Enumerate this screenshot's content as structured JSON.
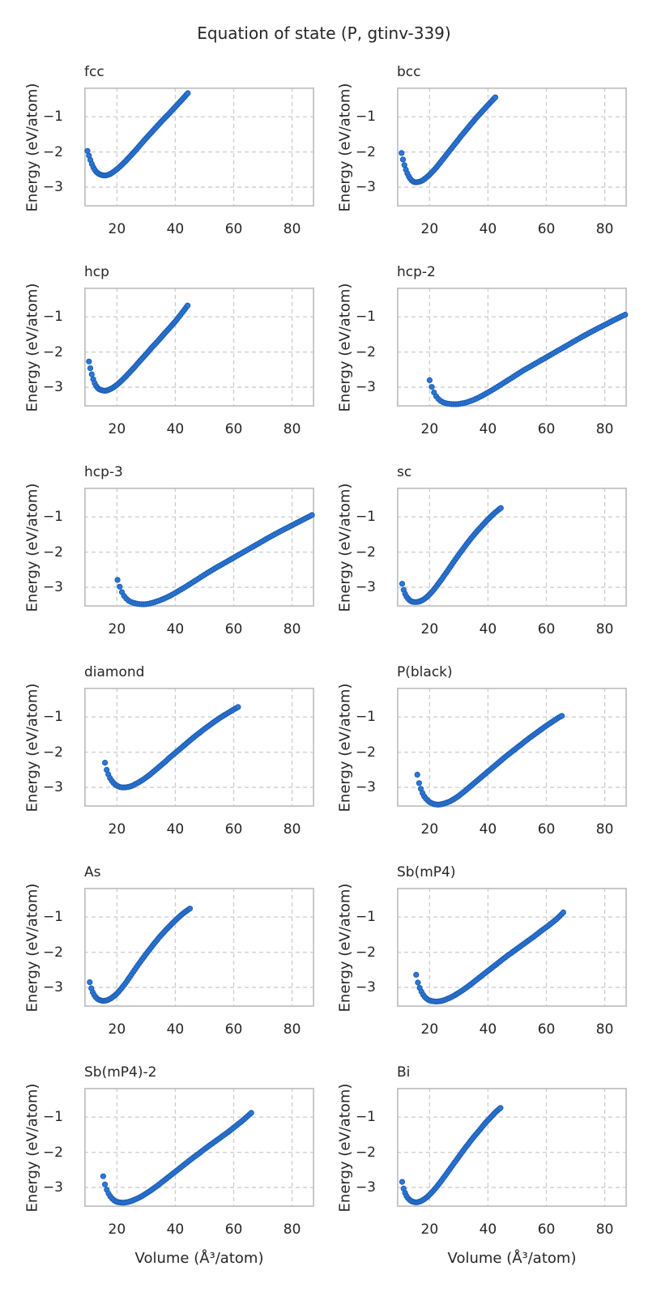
{
  "chart_data": {
    "type": "scatter",
    "title": "Equation of state (P, gtinv-339)",
    "xlabel": "Volume (Å³/atom)",
    "ylabel": "Energy (eV/atom)",
    "xlim": [
      8.8,
      87.6
    ],
    "ylim": [
      -3.55,
      -0.17
    ],
    "xticks": [
      20,
      40,
      60,
      80
    ],
    "yticks": [
      -1,
      -2,
      -3
    ],
    "ytick_labels": [
      "−1",
      "−2",
      "−3"
    ],
    "grid": true,
    "grid_style": "dashed",
    "subplot_grid": {
      "rows": 6,
      "cols": 2
    },
    "marker": {
      "color": "#2b78d9",
      "edge": "#1d5cb0"
    },
    "series": [
      {
        "name": "fcc",
        "n_points": 70,
        "x": [
          9.9,
          10.5,
          11.2,
          12.0,
          13.0,
          14.0,
          15.0,
          16.0,
          17.0,
          18.0,
          20.0,
          22.0,
          24.0,
          26.0,
          28.0,
          30.0,
          32.0,
          34.0,
          36.0,
          38.0,
          40.0,
          42.0,
          44.3
        ],
        "y": [
          -1.97,
          -2.13,
          -2.3,
          -2.45,
          -2.57,
          -2.63,
          -2.66,
          -2.67,
          -2.65,
          -2.61,
          -2.49,
          -2.34,
          -2.17,
          -1.99,
          -1.8,
          -1.61,
          -1.43,
          -1.25,
          -1.07,
          -0.9,
          -0.72,
          -0.54,
          -0.33
        ]
      },
      {
        "name": "bcc",
        "n_points": 66,
        "x": [
          10.4,
          11.0,
          11.7,
          12.5,
          13.3,
          14.2,
          15.2,
          16.3,
          17.5,
          19.0,
          21.0,
          23.0,
          25.0,
          27.0,
          29.0,
          31.0,
          33.0,
          35.0,
          37.0,
          39.0,
          41.0,
          42.5
        ],
        "y": [
          -2.03,
          -2.25,
          -2.46,
          -2.63,
          -2.75,
          -2.83,
          -2.86,
          -2.85,
          -2.81,
          -2.72,
          -2.56,
          -2.37,
          -2.16,
          -1.95,
          -1.74,
          -1.53,
          -1.33,
          -1.13,
          -0.94,
          -0.76,
          -0.58,
          -0.45
        ]
      },
      {
        "name": "hcp",
        "n_points": 70,
        "x": [
          10.4,
          11.0,
          11.6,
          12.3,
          13.1,
          14.0,
          15.0,
          16.0,
          17.0,
          18.5,
          20.0,
          22.0,
          24.0,
          26.0,
          28.0,
          30.0,
          32.0,
          34.0,
          36.0,
          38.0,
          40.0,
          42.0,
          44.2
        ],
        "y": [
          -2.27,
          -2.5,
          -2.7,
          -2.87,
          -2.99,
          -3.06,
          -3.09,
          -3.1,
          -3.08,
          -3.02,
          -2.93,
          -2.78,
          -2.61,
          -2.43,
          -2.24,
          -2.06,
          -1.87,
          -1.69,
          -1.5,
          -1.32,
          -1.13,
          -0.92,
          -0.68
        ]
      },
      {
        "name": "hcp-2",
        "n_points": 90,
        "x": [
          20.0,
          20.7,
          21.4,
          22.2,
          23.0,
          24.0,
          25.0,
          26.5,
          28.0,
          29.5,
          31.0,
          33.0,
          35.0,
          38.0,
          41.0,
          44.0,
          48.0,
          52.0,
          56.0,
          60.0,
          64.0,
          68.0,
          72.0,
          76.0,
          80.0,
          83.5,
          87.0
        ],
        "y": [
          -2.8,
          -2.98,
          -3.13,
          -3.25,
          -3.33,
          -3.4,
          -3.44,
          -3.47,
          -3.48,
          -3.48,
          -3.46,
          -3.42,
          -3.36,
          -3.24,
          -3.1,
          -2.95,
          -2.74,
          -2.53,
          -2.34,
          -2.15,
          -1.96,
          -1.77,
          -1.58,
          -1.4,
          -1.23,
          -1.08,
          -0.94
        ]
      },
      {
        "name": "hcp-3",
        "n_points": 90,
        "x": [
          20.2,
          20.9,
          21.6,
          22.4,
          23.2,
          24.2,
          25.2,
          26.7,
          28.2,
          29.7,
          31.2,
          33.0,
          35.0,
          38.0,
          41.0,
          44.0,
          48.0,
          52.0,
          56.0,
          60.0,
          64.0,
          68.0,
          72.0,
          76.0,
          80.0,
          83.5,
          86.8
        ],
        "y": [
          -2.79,
          -2.97,
          -3.12,
          -3.24,
          -3.32,
          -3.39,
          -3.43,
          -3.46,
          -3.48,
          -3.48,
          -3.46,
          -3.42,
          -3.36,
          -3.25,
          -3.11,
          -2.96,
          -2.75,
          -2.54,
          -2.35,
          -2.16,
          -1.97,
          -1.78,
          -1.59,
          -1.41,
          -1.24,
          -1.09,
          -0.95
        ]
      },
      {
        "name": "sc",
        "n_points": 68,
        "x": [
          10.6,
          11.1,
          11.7,
          12.4,
          13.2,
          14.1,
          15.1,
          16.2,
          17.4,
          18.7,
          20.0,
          21.5,
          23.0,
          25.0,
          27.0,
          29.0,
          31.0,
          33.0,
          35.0,
          37.0,
          39.0,
          41.0,
          43.0,
          44.4
        ],
        "y": [
          -2.9,
          -3.07,
          -3.2,
          -3.3,
          -3.37,
          -3.41,
          -3.42,
          -3.41,
          -3.37,
          -3.3,
          -3.2,
          -3.06,
          -2.9,
          -2.67,
          -2.43,
          -2.19,
          -1.96,
          -1.74,
          -1.53,
          -1.34,
          -1.16,
          -0.99,
          -0.84,
          -0.75
        ]
      },
      {
        "name": "diamond",
        "n_points": 80,
        "x": [
          15.9,
          16.4,
          17.0,
          17.6,
          18.3,
          19.0,
          19.8,
          20.7,
          21.6,
          22.6,
          23.7,
          25.0,
          26.5,
          28.0,
          30.0,
          32.0,
          34.0,
          36.0,
          38.0,
          40.0,
          42.0,
          44.0,
          46.0,
          48.0,
          50.0,
          52.0,
          54.0,
          56.0,
          58.0,
          60.0,
          61.5
        ],
        "y": [
          -2.3,
          -2.48,
          -2.62,
          -2.73,
          -2.82,
          -2.89,
          -2.94,
          -2.98,
          -3.0,
          -3.0,
          -2.99,
          -2.96,
          -2.9,
          -2.83,
          -2.72,
          -2.59,
          -2.45,
          -2.31,
          -2.16,
          -2.02,
          -1.88,
          -1.74,
          -1.6,
          -1.47,
          -1.34,
          -1.22,
          -1.1,
          -0.99,
          -0.89,
          -0.79,
          -0.72
        ]
      },
      {
        "name": "P(black)",
        "n_points": 85,
        "x": [
          15.8,
          16.3,
          16.9,
          17.5,
          18.2,
          19.0,
          19.9,
          20.8,
          21.8,
          22.9,
          24.0,
          25.3,
          26.6,
          28.0,
          30.0,
          32.0,
          34.0,
          36.0,
          38.0,
          40.0,
          42.0,
          44.0,
          46.0,
          48.0,
          50.0,
          52.0,
          54.0,
          56.0,
          58.0,
          60.0,
          62.0,
          64.0,
          65.3
        ],
        "y": [
          -2.64,
          -2.85,
          -3.02,
          -3.15,
          -3.26,
          -3.34,
          -3.41,
          -3.45,
          -3.48,
          -3.49,
          -3.48,
          -3.45,
          -3.41,
          -3.35,
          -3.24,
          -3.11,
          -2.97,
          -2.83,
          -2.69,
          -2.55,
          -2.41,
          -2.27,
          -2.13,
          -2.0,
          -1.87,
          -1.74,
          -1.61,
          -1.49,
          -1.37,
          -1.25,
          -1.14,
          -1.03,
          -0.97
        ]
      },
      {
        "name": "As",
        "n_points": 68,
        "x": [
          10.7,
          11.2,
          11.8,
          12.5,
          13.3,
          14.2,
          15.2,
          16.3,
          17.5,
          18.8,
          20.0,
          21.5,
          23.0,
          25.0,
          27.0,
          29.0,
          31.0,
          33.0,
          35.0,
          37.0,
          39.0,
          41.0,
          43.0,
          45.0
        ],
        "y": [
          -2.85,
          -3.02,
          -3.15,
          -3.25,
          -3.32,
          -3.36,
          -3.38,
          -3.37,
          -3.33,
          -3.26,
          -3.17,
          -3.03,
          -2.87,
          -2.63,
          -2.39,
          -2.16,
          -1.94,
          -1.73,
          -1.53,
          -1.35,
          -1.18,
          -1.02,
          -0.88,
          -0.76
        ]
      },
      {
        "name": "Sb(mP4)",
        "n_points": 85,
        "x": [
          15.4,
          15.9,
          16.5,
          17.2,
          18.0,
          19.0,
          20.0,
          21.0,
          22.2,
          23.5,
          25.0,
          26.5,
          28.0,
          30.0,
          32.0,
          34.0,
          36.0,
          38.0,
          40.0,
          42.0,
          44.0,
          46.0,
          48.0,
          50.0,
          52.0,
          54.0,
          56.0,
          58.0,
          60.0,
          62.0,
          64.0,
          65.8
        ],
        "y": [
          -2.64,
          -2.83,
          -2.99,
          -3.12,
          -3.23,
          -3.32,
          -3.37,
          -3.39,
          -3.4,
          -3.39,
          -3.36,
          -3.31,
          -3.25,
          -3.15,
          -3.04,
          -2.92,
          -2.79,
          -2.66,
          -2.53,
          -2.4,
          -2.27,
          -2.14,
          -2.02,
          -1.9,
          -1.78,
          -1.66,
          -1.54,
          -1.41,
          -1.29,
          -1.16,
          -1.02,
          -0.87
        ]
      },
      {
        "name": "Sb(mP4)-2",
        "n_points": 85,
        "x": [
          15.3,
          15.8,
          16.4,
          17.1,
          17.9,
          18.8,
          19.8,
          20.9,
          22.0,
          23.3,
          24.7,
          26.2,
          28.0,
          30.0,
          32.0,
          34.0,
          36.0,
          38.0,
          40.0,
          42.0,
          44.0,
          46.0,
          48.0,
          50.0,
          52.0,
          54.0,
          56.0,
          58.0,
          60.0,
          62.0,
          64.0,
          66.0
        ],
        "y": [
          -2.68,
          -2.88,
          -3.04,
          -3.17,
          -3.27,
          -3.35,
          -3.4,
          -3.42,
          -3.43,
          -3.42,
          -3.39,
          -3.34,
          -3.27,
          -3.17,
          -3.06,
          -2.94,
          -2.81,
          -2.68,
          -2.55,
          -2.42,
          -2.29,
          -2.16,
          -2.04,
          -1.91,
          -1.79,
          -1.67,
          -1.55,
          -1.43,
          -1.3,
          -1.17,
          -1.03,
          -0.88
        ]
      },
      {
        "name": "Bi",
        "n_points": 68,
        "x": [
          10.6,
          11.0,
          11.5,
          12.1,
          12.8,
          13.6,
          14.5,
          15.5,
          16.6,
          17.8,
          19.0,
          20.3,
          21.7,
          23.2,
          25.0,
          27.0,
          29.0,
          31.0,
          33.0,
          35.0,
          37.0,
          39.0,
          41.0,
          43.0,
          44.3
        ],
        "y": [
          -2.84,
          -3.0,
          -3.13,
          -3.24,
          -3.32,
          -3.38,
          -3.41,
          -3.42,
          -3.4,
          -3.35,
          -3.28,
          -3.18,
          -3.05,
          -2.9,
          -2.7,
          -2.47,
          -2.24,
          -2.01,
          -1.79,
          -1.58,
          -1.38,
          -1.18,
          -1.0,
          -0.83,
          -0.74
        ]
      }
    ]
  }
}
